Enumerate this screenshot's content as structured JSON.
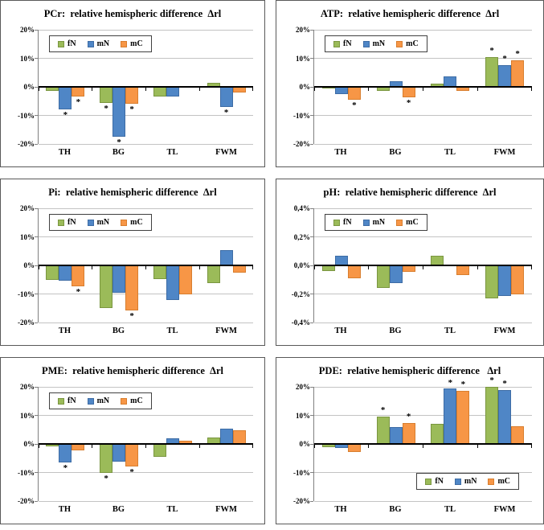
{
  "page": {
    "background": "#ffffff"
  },
  "symbols": {
    "significance": "*"
  },
  "legend": {
    "entries": [
      {
        "name": "fN",
        "color": "#9BBB59",
        "border": "#7A9640"
      },
      {
        "name": "mN",
        "color": "#4F86C6",
        "border": "#3D6CA5"
      },
      {
        "name": "mC",
        "color": "#F79646",
        "border": "#D87E2E"
      }
    ]
  },
  "chart_data": [
    {
      "id": "pcr",
      "type": "bar",
      "title": "PCr:  relative hemispheric difference  Δrl",
      "categories": [
        "TH",
        "BG",
        "TL",
        "FWM"
      ],
      "ylim": [
        -20,
        20
      ],
      "yticks": {
        "values": [
          20,
          10,
          0,
          -10,
          -20
        ],
        "labels": [
          "20%",
          "10%",
          "0%",
          "-10%",
          "-20%"
        ]
      },
      "legend_position": "top-left",
      "grid": true,
      "series": [
        {
          "name": "fN",
          "values": [
            -1.5,
            -5.5,
            -3.3,
            1.5
          ],
          "stars": [
            0,
            1,
            0,
            0
          ]
        },
        {
          "name": "mN",
          "values": [
            -8.0,
            -17.5,
            -3.5,
            -7.0
          ],
          "stars": [
            1,
            1,
            0,
            1
          ]
        },
        {
          "name": "mC",
          "values": [
            -3.5,
            -6.0,
            0.4,
            -2.0
          ],
          "stars": [
            1,
            1,
            0,
            0
          ]
        }
      ]
    },
    {
      "id": "atp",
      "type": "bar",
      "title": "ATP:  relative hemispheric difference  Δrl",
      "categories": [
        "TH",
        "BG",
        "TL",
        "FWM"
      ],
      "ylim": [
        -20,
        20
      ],
      "yticks": {
        "values": [
          20,
          10,
          0,
          -10,
          -20
        ],
        "labels": [
          "20%",
          "10%",
          "0%",
          "-10%",
          "-20%"
        ]
      },
      "legend_position": "top-left",
      "grid": true,
      "series": [
        {
          "name": "fN",
          "values": [
            -0.4,
            -1.5,
            1.2,
            10.5
          ],
          "stars": [
            0,
            0,
            0,
            1
          ]
        },
        {
          "name": "mN",
          "values": [
            -2.5,
            2.0,
            3.8,
            7.5
          ],
          "stars": [
            0,
            0,
            0,
            1
          ]
        },
        {
          "name": "mC",
          "values": [
            -4.5,
            -3.7,
            -1.5,
            9.2
          ],
          "stars": [
            1,
            1,
            0,
            1
          ]
        }
      ]
    },
    {
      "id": "pi",
      "type": "bar",
      "title": "Pi:  relative hemispheric difference  Δrl",
      "categories": [
        "TH",
        "BG",
        "TL",
        "FWM"
      ],
      "ylim": [
        -20,
        20
      ],
      "yticks": {
        "values": [
          20,
          10,
          0,
          -10,
          -20
        ],
        "labels": [
          "20%",
          "10%",
          "0%",
          "-10%",
          "-20%"
        ]
      },
      "legend_position": "top-left",
      "grid": true,
      "series": [
        {
          "name": "fN",
          "values": [
            -5.0,
            -14.8,
            -4.7,
            -6.2
          ],
          "stars": [
            0,
            0,
            0,
            0
          ]
        },
        {
          "name": "mN",
          "values": [
            -5.3,
            -9.5,
            -12.2,
            5.3
          ],
          "stars": [
            0,
            0,
            0,
            0
          ]
        },
        {
          "name": "mC",
          "values": [
            -7.3,
            -15.8,
            -10.0,
            -2.5
          ],
          "stars": [
            1,
            1,
            0,
            0
          ]
        }
      ]
    },
    {
      "id": "ph",
      "type": "bar",
      "title": "pH:  relative hemispheric difference  Δrl",
      "categories": [
        "TH",
        "BG",
        "TL",
        "FWM"
      ],
      "ylim": [
        -0.4,
        0.4
      ],
      "yticks": {
        "values": [
          0.4,
          0.2,
          0,
          -0.2,
          -0.4
        ],
        "labels": [
          "0,4%",
          "0,2%",
          "0,0%",
          "-0,2%",
          "-0,4%"
        ]
      },
      "legend_position": "top-left",
      "grid": true,
      "series": [
        {
          "name": "fN",
          "values": [
            -0.04,
            -0.155,
            0.065,
            -0.23
          ],
          "stars": [
            0,
            0,
            0,
            0
          ]
        },
        {
          "name": "mN",
          "values": [
            0.07,
            -0.125,
            0,
            -0.215
          ],
          "stars": [
            0,
            0,
            0,
            0
          ]
        },
        {
          "name": "mC",
          "values": [
            -0.09,
            -0.045,
            -0.065,
            -0.2
          ],
          "stars": [
            0,
            0,
            0,
            0
          ]
        }
      ]
    },
    {
      "id": "pme",
      "type": "bar",
      "title": "PME:  relative hemispheric difference  Δrl",
      "categories": [
        "TH",
        "BG",
        "TL",
        "FWM"
      ],
      "ylim": [
        -20,
        20
      ],
      "yticks": {
        "values": [
          20,
          10,
          0,
          -10,
          -20
        ],
        "labels": [
          "20%",
          "10%",
          "0%",
          "-10%",
          "-20%"
        ]
      },
      "legend_position": "top-left",
      "grid": true,
      "series": [
        {
          "name": "fN",
          "values": [
            -0.8,
            -10.0,
            -4.5,
            2.2
          ],
          "stars": [
            0,
            1,
            0,
            0
          ]
        },
        {
          "name": "mN",
          "values": [
            -6.5,
            -6.2,
            2.0,
            5.3
          ],
          "stars": [
            1,
            0,
            0,
            0
          ]
        },
        {
          "name": "mC",
          "values": [
            -2.2,
            -7.8,
            1.2,
            4.8
          ],
          "stars": [
            0,
            1,
            0,
            0
          ]
        }
      ]
    },
    {
      "id": "pde",
      "type": "bar",
      "title": "PDE:  relative hemispheric difference   Δrl",
      "categories": [
        "TH",
        "BG",
        "TL",
        "FWM"
      ],
      "ylim": [
        -20,
        20
      ],
      "yticks": {
        "values": [
          20,
          10,
          0,
          -10,
          -20
        ],
        "labels": [
          "20%",
          "10%",
          "0%",
          "-10%",
          "-20%"
        ]
      },
      "legend_position": "bottom-right",
      "grid": true,
      "series": [
        {
          "name": "fN",
          "values": [
            -1.0,
            9.7,
            7.0,
            20.0
          ],
          "stars": [
            0,
            1,
            0,
            1
          ]
        },
        {
          "name": "mN",
          "values": [
            -1.5,
            6.0,
            19.3,
            18.8
          ],
          "stars": [
            0,
            0,
            1,
            1
          ]
        },
        {
          "name": "mC",
          "values": [
            -2.7,
            7.2,
            18.5,
            6.2
          ],
          "stars": [
            0,
            1,
            1,
            0
          ]
        }
      ]
    }
  ]
}
